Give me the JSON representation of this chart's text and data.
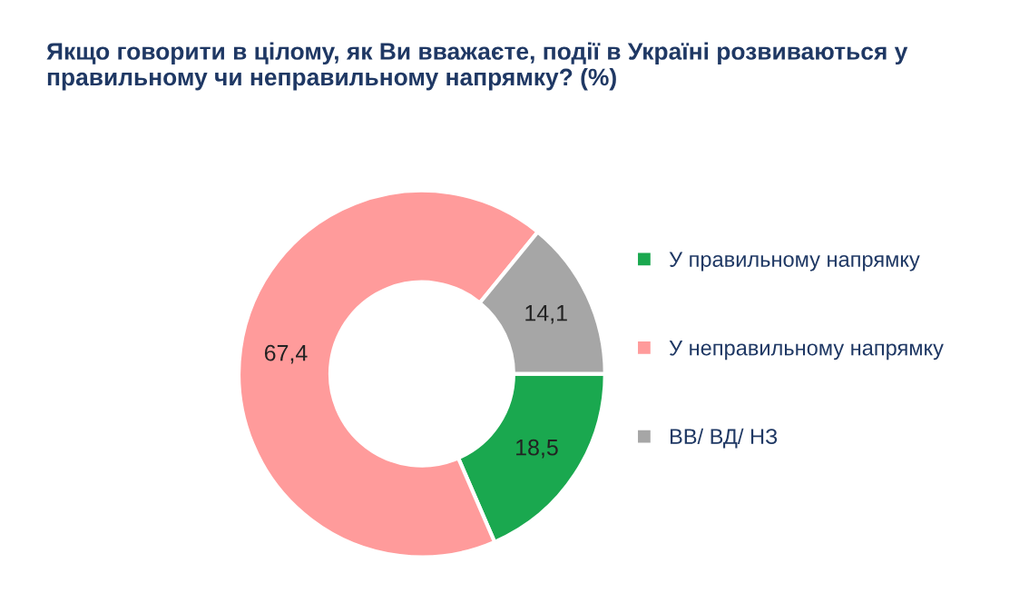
{
  "chart_data": {
    "type": "donut",
    "title": "Якщо говорити в цілому, як Ви вважаєте, події в Україні розвиваються у правильному чи неправильному напрямку? (%)",
    "categories": [
      "У правильному напрямку",
      "У неправильному напрямку",
      "ВВ/ ВД/ НЗ"
    ],
    "values": [
      18.5,
      67.4,
      14.1
    ],
    "value_labels": [
      "18,5",
      "67,4",
      "14,1"
    ],
    "colors": [
      "#1aa84f",
      "#ff9b9b",
      "#a6a6a6"
    ],
    "legend": "right"
  }
}
